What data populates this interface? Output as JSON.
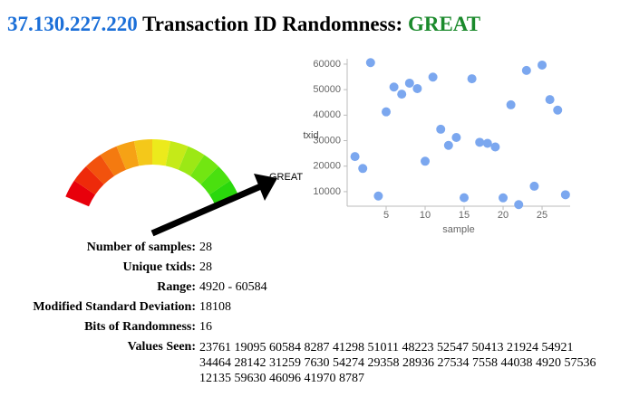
{
  "header": {
    "host": "37.130.227.220",
    "title": "Transaction ID Randomness:",
    "verdict": "GREAT"
  },
  "stats": {
    "rows": [
      {
        "label": "Number of samples:",
        "value": 28
      },
      {
        "label": "Unique txids:",
        "value": 28
      },
      {
        "label": "Range:",
        "value": "4920 - 60584"
      },
      {
        "label": "Modified Standard Deviation:",
        "value": 18108
      },
      {
        "label": "Bits of Randomness:",
        "value": 16
      },
      {
        "label": "Values Seen:"
      }
    ]
  },
  "chart_data": {
    "type": "scatter",
    "x_label": "sample",
    "y_label": "txid",
    "x": [
      1,
      2,
      3,
      4,
      5,
      6,
      7,
      8,
      9,
      10,
      11,
      12,
      13,
      14,
      15,
      16,
      17,
      18,
      19,
      20,
      21,
      22,
      23,
      24,
      25,
      26,
      27,
      28
    ],
    "values": [
      23761,
      19095,
      60584,
      8287,
      41298,
      51011,
      48223,
      52547,
      50413,
      21924,
      54921,
      34464,
      28142,
      31259,
      7630,
      54274,
      29358,
      28936,
      27534,
      7558,
      44038,
      4920,
      57536,
      12135,
      59630,
      46096,
      41970,
      8787
    ],
    "color": "#7ba7ef",
    "xlim": [
      0,
      28.6
    ],
    "ylim": [
      4300,
      62100
    ],
    "xticks": [
      5,
      10,
      15,
      20,
      25
    ],
    "yticks": [
      10000,
      20000,
      30000,
      40000,
      50000,
      60000
    ]
  }
}
